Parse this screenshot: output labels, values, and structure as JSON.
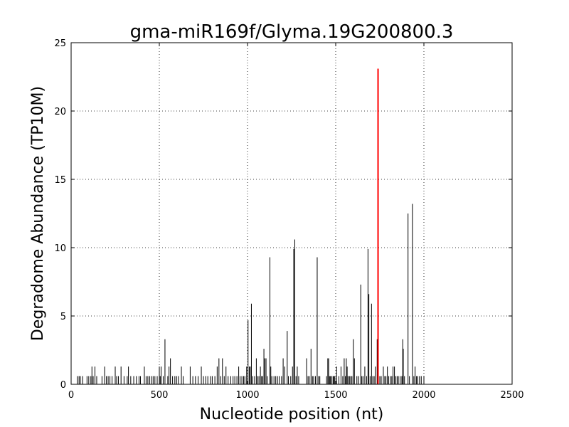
{
  "chart_data": {
    "type": "bar",
    "title": "gma-miR169f/Glyma.19G200800.3",
    "xlabel": "Nucleotide position (nt)",
    "ylabel": "Degradome Abundance (TP10M)",
    "xlim": [
      0,
      2500
    ],
    "ylim": [
      0,
      25
    ],
    "x_ticks": [
      0,
      500,
      1000,
      1500,
      2000,
      2500
    ],
    "y_ticks": [
      0,
      5,
      10,
      15,
      20,
      25
    ],
    "grid": true,
    "colors": {
      "background_bars": "#000000",
      "target_peak": "#ff0000"
    },
    "series": [
      {
        "values": [
          [
            35,
            0.6
          ],
          [
            45,
            0.6
          ],
          [
            52,
            0.6
          ],
          [
            65,
            0.6
          ],
          [
            90,
            0.6
          ],
          [
            100,
            0.6
          ],
          [
            112,
            0.6
          ],
          [
            118,
            1.3
          ],
          [
            125,
            0.6
          ],
          [
            135,
            1.3
          ],
          [
            145,
            0.6
          ],
          [
            175,
            0.6
          ],
          [
            190,
            1.3
          ],
          [
            200,
            0.6
          ],
          [
            210,
            0.6
          ],
          [
            220,
            0.6
          ],
          [
            232,
            0.6
          ],
          [
            250,
            1.3
          ],
          [
            258,
            0.6
          ],
          [
            268,
            0.6
          ],
          [
            283,
            1.3
          ],
          [
            300,
            0.6
          ],
          [
            318,
            0.6
          ],
          [
            325,
            1.3
          ],
          [
            338,
            0.6
          ],
          [
            355,
            0.6
          ],
          [
            370,
            0.6
          ],
          [
            385,
            0.6
          ],
          [
            393,
            0.6
          ],
          [
            415,
            1.3
          ],
          [
            425,
            0.6
          ],
          [
            435,
            0.6
          ],
          [
            445,
            0.6
          ],
          [
            455,
            0.6
          ],
          [
            465,
            0.6
          ],
          [
            475,
            0.6
          ],
          [
            488,
            0.6
          ],
          [
            500,
            1.3
          ],
          [
            505,
            0.6
          ],
          [
            510,
            1.3
          ],
          [
            522,
            0.6
          ],
          [
            532,
            3.3
          ],
          [
            548,
            0.6
          ],
          [
            555,
            1.3
          ],
          [
            563,
            1.9
          ],
          [
            575,
            0.6
          ],
          [
            588,
            0.6
          ],
          [
            598,
            0.6
          ],
          [
            608,
            0.6
          ],
          [
            625,
            1.3
          ],
          [
            635,
            0.6
          ],
          [
            675,
            1.3
          ],
          [
            690,
            0.6
          ],
          [
            705,
            0.6
          ],
          [
            720,
            0.6
          ],
          [
            738,
            1.3
          ],
          [
            750,
            0.6
          ],
          [
            763,
            0.6
          ],
          [
            775,
            0.6
          ],
          [
            790,
            0.6
          ],
          [
            800,
            0.6
          ],
          [
            815,
            0.6
          ],
          [
            828,
            1.3
          ],
          [
            838,
            1.9
          ],
          [
            848,
            0.6
          ],
          [
            858,
            1.9
          ],
          [
            868,
            0.6
          ],
          [
            878,
            1.3
          ],
          [
            890,
            0.6
          ],
          [
            905,
            0.6
          ],
          [
            918,
            0.6
          ],
          [
            928,
            0.6
          ],
          [
            940,
            0.6
          ],
          [
            950,
            1.3
          ],
          [
            958,
            0.6
          ],
          [
            968,
            0.6
          ],
          [
            978,
            0.6
          ],
          [
            985,
            0.6
          ],
          [
            995,
            1.3
          ],
          [
            1003,
            4.7
          ],
          [
            1010,
            1.3
          ],
          [
            1016,
            1.3
          ],
          [
            1022,
            5.9
          ],
          [
            1030,
            0.6
          ],
          [
            1040,
            0.6
          ],
          [
            1050,
            1.9
          ],
          [
            1058,
            0.6
          ],
          [
            1065,
            0.6
          ],
          [
            1073,
            1.3
          ],
          [
            1080,
            0.6
          ],
          [
            1085,
            0.6
          ],
          [
            1093,
            2.6
          ],
          [
            1098,
            1.9
          ],
          [
            1105,
            1.9
          ],
          [
            1112,
            0.6
          ],
          [
            1127,
            9.3
          ],
          [
            1132,
            1.3
          ],
          [
            1138,
            0.6
          ],
          [
            1150,
            0.6
          ],
          [
            1160,
            0.6
          ],
          [
            1170,
            0.6
          ],
          [
            1180,
            0.6
          ],
          [
            1193,
            0.6
          ],
          [
            1202,
            1.9
          ],
          [
            1210,
            1.3
          ],
          [
            1225,
            3.9
          ],
          [
            1232,
            0.6
          ],
          [
            1245,
            0.6
          ],
          [
            1255,
            1.3
          ],
          [
            1262,
            9.9
          ],
          [
            1268,
            10.6
          ],
          [
            1275,
            0.6
          ],
          [
            1282,
            1.3
          ],
          [
            1290,
            0.6
          ],
          [
            1335,
            1.9
          ],
          [
            1343,
            0.6
          ],
          [
            1350,
            0.6
          ],
          [
            1360,
            2.6
          ],
          [
            1368,
            0.6
          ],
          [
            1375,
            0.6
          ],
          [
            1385,
            0.6
          ],
          [
            1395,
            9.3
          ],
          [
            1403,
            0.6
          ],
          [
            1410,
            0.6
          ],
          [
            1448,
            0.6
          ],
          [
            1455,
            1.9
          ],
          [
            1460,
            1.9
          ],
          [
            1465,
            0.6
          ],
          [
            1470,
            0.6
          ],
          [
            1478,
            0.6
          ],
          [
            1485,
            0.6
          ],
          [
            1490,
            0.6
          ],
          [
            1495,
            0.6
          ],
          [
            1505,
            1.3
          ],
          [
            1518,
            0.6
          ],
          [
            1530,
            1.3
          ],
          [
            1540,
            0.6
          ],
          [
            1548,
            1.9
          ],
          [
            1555,
            0.6
          ],
          [
            1560,
            1.9
          ],
          [
            1565,
            1.3
          ],
          [
            1570,
            0.6
          ],
          [
            1578,
            0.6
          ],
          [
            1585,
            0.6
          ],
          [
            1592,
            0.6
          ],
          [
            1600,
            3.3
          ],
          [
            1606,
            1.9
          ],
          [
            1620,
            0.6
          ],
          [
            1630,
            0.6
          ],
          [
            1642,
            7.3
          ],
          [
            1648,
            0.6
          ],
          [
            1655,
            0.6
          ],
          [
            1665,
            1.3
          ],
          [
            1675,
            0.6
          ],
          [
            1683,
            9.9
          ],
          [
            1688,
            6.6
          ],
          [
            1695,
            0.6
          ],
          [
            1703,
            5.9
          ],
          [
            1710,
            0.6
          ],
          [
            1718,
            0.6
          ],
          [
            1725,
            1.3
          ],
          [
            1735,
            3.3
          ],
          [
            1742,
            0.6
          ],
          [
            1750,
            0.6
          ],
          [
            1758,
            0.6
          ],
          [
            1770,
            1.3
          ],
          [
            1778,
            0.6
          ],
          [
            1785,
            0.6
          ],
          [
            1793,
            1.3
          ],
          [
            1800,
            0.6
          ],
          [
            1810,
            0.6
          ],
          [
            1818,
            0.6
          ],
          [
            1825,
            1.3
          ],
          [
            1833,
            1.3
          ],
          [
            1840,
            0.6
          ],
          [
            1848,
            0.6
          ],
          [
            1855,
            0.6
          ],
          [
            1865,
            0.6
          ],
          [
            1875,
            0.6
          ],
          [
            1880,
            3.3
          ],
          [
            1883,
            2.6
          ],
          [
            1890,
            0.6
          ],
          [
            1910,
            12.5
          ],
          [
            1918,
            0.6
          ],
          [
            1935,
            13.2
          ],
          [
            1943,
            0.6
          ],
          [
            1950,
            1.3
          ],
          [
            1958,
            0.6
          ],
          [
            1965,
            0.6
          ],
          [
            1975,
            0.6
          ],
          [
            1985,
            0.6
          ],
          [
            2000,
            0.6
          ]
        ]
      },
      {
        "values": [
          [
            1740,
            23.1
          ]
        ]
      }
    ]
  }
}
